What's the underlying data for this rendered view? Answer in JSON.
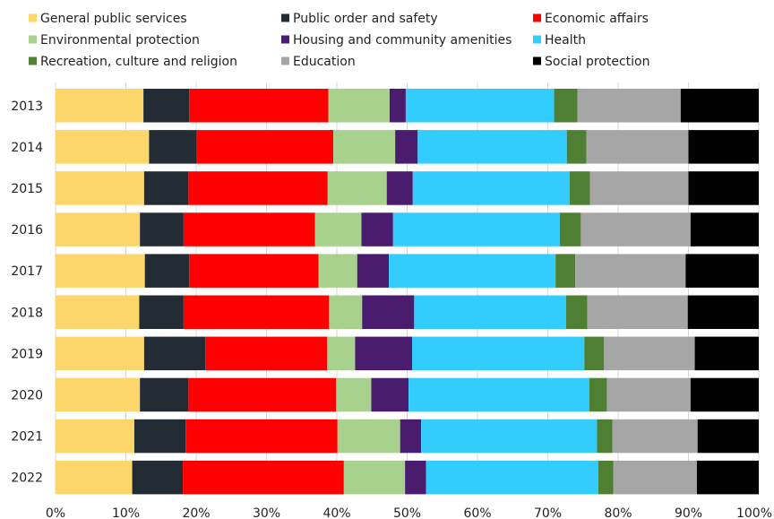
{
  "chart_data": {
    "type": "bar",
    "orientation": "horizontal",
    "stacked": true,
    "percent_stacked": true,
    "categories": [
      "2013",
      "2014",
      "2015",
      "2016",
      "2017",
      "2018",
      "2019",
      "2020",
      "2021",
      "2022"
    ],
    "series": [
      {
        "name": "General public services",
        "color": "#fdd66b",
        "values": [
          12.5,
          13.3,
          12.6,
          12.0,
          12.7,
          11.9,
          12.6,
          12.0,
          11.2,
          10.9
        ]
      },
      {
        "name": "Public order and safety",
        "color": "#232b35",
        "values": [
          6.5,
          6.7,
          6.3,
          6.2,
          6.3,
          6.3,
          8.7,
          6.9,
          7.3,
          7.2
        ]
      },
      {
        "name": "Economic affairs",
        "color": "#fe0000",
        "values": [
          19.8,
          19.5,
          19.8,
          18.7,
          18.4,
          20.7,
          17.3,
          21.0,
          21.6,
          22.9
        ]
      },
      {
        "name": "Environmental protection",
        "color": "#a8d18d",
        "values": [
          8.7,
          8.8,
          8.4,
          6.6,
          5.5,
          4.7,
          4.0,
          5.0,
          8.9,
          8.7
        ]
      },
      {
        "name": "Housing and community amenities",
        "color": "#4a1c6e",
        "values": [
          2.3,
          3.2,
          3.7,
          4.5,
          4.5,
          7.4,
          8.1,
          5.3,
          3.0,
          3.0
        ]
      },
      {
        "name": "Health",
        "color": "#33ccff",
        "values": [
          21.1,
          21.2,
          22.3,
          23.7,
          23.7,
          21.6,
          24.5,
          25.7,
          25.0,
          24.5
        ]
      },
      {
        "name": "Recreation, culture and religion",
        "color": "#4e7f32",
        "values": [
          3.3,
          2.8,
          2.9,
          3.0,
          2.8,
          3.0,
          2.8,
          2.5,
          2.2,
          2.1
        ]
      },
      {
        "name": "Education",
        "color": "#a6a6a6",
        "values": [
          14.7,
          14.5,
          14.0,
          15.6,
          15.7,
          14.3,
          12.9,
          11.9,
          12.1,
          11.9
        ]
      },
      {
        "name": "Social protection",
        "color": "#000000",
        "values": [
          11.1,
          10.0,
          10.0,
          9.7,
          10.4,
          10.1,
          9.1,
          9.7,
          8.7,
          8.8
        ]
      }
    ],
    "xlim": [
      0,
      100
    ],
    "xticks": [
      "0%",
      "10%",
      "20%",
      "30%",
      "40%",
      "50%",
      "60%",
      "70%",
      "80%",
      "90%",
      "100%"
    ],
    "legend_position": "top",
    "grid": true
  }
}
